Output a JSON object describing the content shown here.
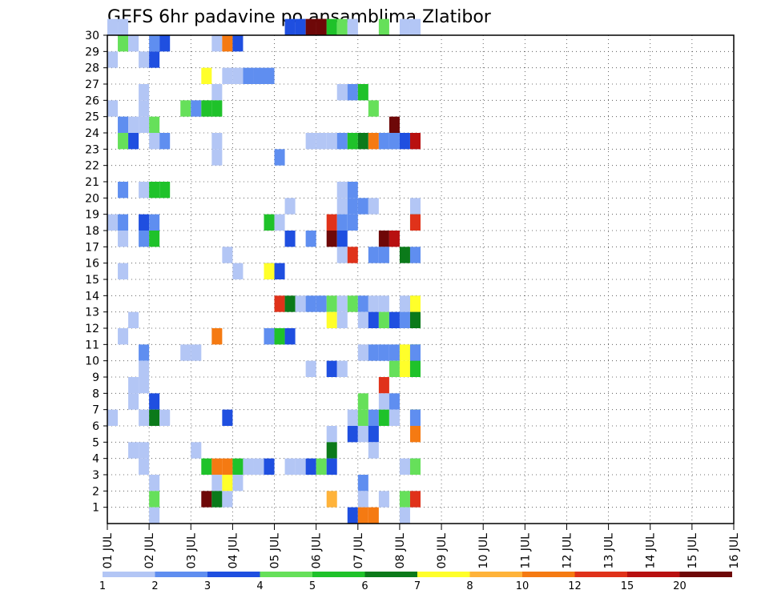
{
  "chart_data": {
    "type": "heatmap",
    "title": "GEFS 6hr padavine po ansamblima Zlatibor",
    "xlabel": "",
    "ylabel": "",
    "x_ticks": [
      "01 JUL",
      "02 JUL",
      "03 JUL",
      "04 JUL",
      "05 JUL",
      "06 JUL",
      "07 JUL",
      "08 JUL",
      "09 JUL",
      "10 JUL",
      "11 JUL",
      "12 JUL",
      "13 JUL",
      "14 JUL",
      "15 JUL",
      "16 JUL"
    ],
    "y_ticks": [
      1,
      2,
      3,
      4,
      5,
      6,
      7,
      8,
      9,
      10,
      11,
      12,
      13,
      14,
      15,
      16,
      17,
      18,
      19,
      20,
      21,
      22,
      23,
      24,
      25,
      26,
      27,
      28,
      29,
      30
    ],
    "x_range": [
      0,
      60
    ],
    "y_range": [
      0,
      30
    ],
    "grid": "dotted",
    "colorbar": {
      "labels": [
        "1",
        "2",
        "3",
        "4",
        "5",
        "6",
        "7",
        "8",
        "10",
        "12",
        "15",
        "20"
      ],
      "colors": [
        "#b3c6f5",
        "#5f8ef0",
        "#1f4fe0",
        "#66e05a",
        "#1fc22a",
        "#0b7a1a",
        "#ffff2a",
        "#ffb33a",
        "#f57a12",
        "#e0321a",
        "#b81010",
        "#6e0808"
      ]
    },
    "cells": [
      [
        0,
        30,
        0
      ],
      [
        1,
        30,
        0
      ],
      [
        17,
        30,
        2
      ],
      [
        18,
        30,
        2
      ],
      [
        19,
        30,
        11
      ],
      [
        20,
        30,
        11
      ],
      [
        20,
        30,
        11
      ],
      [
        21,
        30,
        4
      ],
      [
        22,
        30,
        3
      ],
      [
        23,
        30,
        0
      ],
      [
        23,
        30,
        0
      ],
      [
        26,
        30,
        3
      ],
      [
        28,
        30,
        0
      ],
      [
        29,
        30,
        0
      ],
      [
        1,
        29,
        3
      ],
      [
        2,
        29,
        0
      ],
      [
        4,
        29,
        1
      ],
      [
        5,
        29,
        2
      ],
      [
        10,
        29,
        0
      ],
      [
        11,
        29,
        8
      ],
      [
        12,
        29,
        2
      ],
      [
        0,
        28,
        0
      ],
      [
        3,
        28,
        0
      ],
      [
        4,
        28,
        2
      ],
      [
        9,
        27,
        6
      ],
      [
        11,
        27,
        0
      ],
      [
        12,
        27,
        0
      ],
      [
        13,
        27,
        1
      ],
      [
        14,
        27,
        1
      ],
      [
        15,
        27,
        1
      ],
      [
        3,
        26,
        0
      ],
      [
        10,
        26,
        0
      ],
      [
        22,
        26,
        0
      ],
      [
        23,
        26,
        1
      ],
      [
        24,
        26,
        4
      ],
      [
        0,
        25,
        0
      ],
      [
        3,
        25,
        0
      ],
      [
        7,
        25,
        3
      ],
      [
        8,
        25,
        1
      ],
      [
        9,
        25,
        4
      ],
      [
        10,
        25,
        4
      ],
      [
        25,
        25,
        3
      ],
      [
        1,
        24,
        1
      ],
      [
        2,
        24,
        0
      ],
      [
        3,
        24,
        0
      ],
      [
        4,
        24,
        3
      ],
      [
        27,
        24,
        11
      ],
      [
        1,
        23,
        3
      ],
      [
        2,
        23,
        2
      ],
      [
        4,
        23,
        0
      ],
      [
        5,
        23,
        1
      ],
      [
        10,
        23,
        0
      ],
      [
        19,
        23,
        0
      ],
      [
        20,
        23,
        0
      ],
      [
        21,
        23,
        0
      ],
      [
        22,
        23,
        1
      ],
      [
        23,
        23,
        4
      ],
      [
        24,
        23,
        5
      ],
      [
        25,
        23,
        8
      ],
      [
        26,
        23,
        1
      ],
      [
        27,
        23,
        1
      ],
      [
        28,
        23,
        2
      ],
      [
        29,
        23,
        0
      ],
      [
        29,
        23,
        10
      ],
      [
        10,
        22,
        0
      ],
      [
        16,
        22,
        1
      ],
      [
        1,
        20,
        1
      ],
      [
        3,
        20,
        0
      ],
      [
        4,
        20,
        4
      ],
      [
        5,
        20,
        4
      ],
      [
        22,
        20,
        0
      ],
      [
        23,
        20,
        1
      ],
      [
        17,
        19,
        0
      ],
      [
        22,
        19,
        0
      ],
      [
        23,
        19,
        1
      ],
      [
        24,
        19,
        1
      ],
      [
        25,
        19,
        0
      ],
      [
        29,
        19,
        0
      ],
      [
        0,
        18,
        0
      ],
      [
        1,
        18,
        1
      ],
      [
        3,
        18,
        2
      ],
      [
        4,
        18,
        1
      ],
      [
        15,
        18,
        4
      ],
      [
        16,
        18,
        0
      ],
      [
        21,
        18,
        9
      ],
      [
        22,
        18,
        1
      ],
      [
        23,
        18,
        1
      ],
      [
        29,
        18,
        5
      ],
      [
        29,
        18,
        9
      ],
      [
        1,
        17,
        0
      ],
      [
        3,
        17,
        1
      ],
      [
        4,
        17,
        4
      ],
      [
        17,
        17,
        2
      ],
      [
        19,
        17,
        1
      ],
      [
        21,
        17,
        11
      ],
      [
        22,
        17,
        2
      ],
      [
        26,
        17,
        11
      ],
      [
        27,
        17,
        10
      ],
      [
        11,
        16,
        0
      ],
      [
        22,
        16,
        0
      ],
      [
        23,
        16,
        9
      ],
      [
        25,
        16,
        1
      ],
      [
        26,
        16,
        1
      ],
      [
        28,
        16,
        5
      ],
      [
        29,
        16,
        1
      ],
      [
        1,
        15,
        0
      ],
      [
        12,
        15,
        0
      ],
      [
        15,
        15,
        2
      ],
      [
        15,
        15,
        6
      ],
      [
        16,
        15,
        2
      ],
      [
        16,
        13,
        9
      ],
      [
        17,
        13,
        5
      ],
      [
        18,
        13,
        0
      ],
      [
        19,
        13,
        1
      ],
      [
        20,
        13,
        1
      ],
      [
        21,
        13,
        3
      ],
      [
        22,
        13,
        0
      ],
      [
        23,
        13,
        3
      ],
      [
        24,
        13,
        1
      ],
      [
        25,
        13,
        0
      ],
      [
        26,
        13,
        0
      ],
      [
        28,
        13,
        0
      ],
      [
        29,
        13,
        1
      ],
      [
        29,
        13,
        6
      ],
      [
        2,
        12,
        0
      ],
      [
        21,
        12,
        6
      ],
      [
        22,
        12,
        0
      ],
      [
        24,
        12,
        0
      ],
      [
        25,
        12,
        2
      ],
      [
        26,
        12,
        3
      ],
      [
        27,
        12,
        2
      ],
      [
        28,
        12,
        1
      ],
      [
        29,
        12,
        7
      ],
      [
        29,
        12,
        5
      ],
      [
        1,
        11,
        0
      ],
      [
        10,
        11,
        8
      ],
      [
        15,
        11,
        1
      ],
      [
        16,
        11,
        4
      ],
      [
        17,
        11,
        2
      ],
      [
        3,
        10,
        1
      ],
      [
        7,
        10,
        0
      ],
      [
        8,
        10,
        0
      ],
      [
        24,
        10,
        0
      ],
      [
        25,
        10,
        1
      ],
      [
        26,
        10,
        1
      ],
      [
        27,
        10,
        1
      ],
      [
        28,
        10,
        6
      ],
      [
        29,
        10,
        4
      ],
      [
        29,
        10,
        1
      ],
      [
        3,
        9,
        0
      ],
      [
        19,
        9,
        0
      ],
      [
        21,
        9,
        2
      ],
      [
        22,
        9,
        0
      ],
      [
        27,
        9,
        3
      ],
      [
        28,
        9,
        6
      ],
      [
        29,
        9,
        2
      ],
      [
        29,
        9,
        4
      ],
      [
        2,
        8,
        0
      ],
      [
        3,
        8,
        0
      ],
      [
        26,
        8,
        9
      ],
      [
        2,
        7,
        0
      ],
      [
        4,
        7,
        2
      ],
      [
        24,
        7,
        3
      ],
      [
        26,
        7,
        0
      ],
      [
        27,
        7,
        1
      ],
      [
        0,
        6,
        0
      ],
      [
        3,
        6,
        0
      ],
      [
        4,
        6,
        5
      ],
      [
        5,
        6,
        0
      ],
      [
        11,
        6,
        2
      ],
      [
        23,
        6,
        0
      ],
      [
        24,
        6,
        3
      ],
      [
        25,
        6,
        1
      ],
      [
        26,
        6,
        4
      ],
      [
        27,
        6,
        0
      ],
      [
        29,
        6,
        5
      ],
      [
        29,
        6,
        1
      ],
      [
        21,
        5,
        0
      ],
      [
        23,
        5,
        2
      ],
      [
        24,
        5,
        0
      ],
      [
        25,
        5,
        2
      ],
      [
        29,
        5,
        8
      ],
      [
        2,
        4,
        0
      ],
      [
        3,
        4,
        0
      ],
      [
        8,
        4,
        0
      ],
      [
        21,
        4,
        5
      ],
      [
        25,
        4,
        0
      ],
      [
        3,
        3,
        0
      ],
      [
        9,
        3,
        4
      ],
      [
        10,
        3,
        8
      ],
      [
        11,
        3,
        8
      ],
      [
        12,
        3,
        4
      ],
      [
        13,
        3,
        0
      ],
      [
        14,
        3,
        0
      ],
      [
        15,
        3,
        2
      ],
      [
        17,
        3,
        0
      ],
      [
        18,
        3,
        0
      ],
      [
        19,
        3,
        2
      ],
      [
        20,
        3,
        3
      ],
      [
        21,
        3,
        2
      ],
      [
        28,
        3,
        0
      ],
      [
        29,
        3,
        1
      ],
      [
        29,
        3,
        3
      ],
      [
        4,
        2,
        0
      ],
      [
        10,
        2,
        0
      ],
      [
        11,
        2,
        6
      ],
      [
        12,
        2,
        0
      ],
      [
        24,
        2,
        1
      ],
      [
        4,
        1,
        3
      ],
      [
        9,
        1,
        11
      ],
      [
        10,
        1,
        5
      ],
      [
        11,
        1,
        0
      ],
      [
        21,
        1,
        7
      ],
      [
        24,
        1,
        0
      ],
      [
        26,
        1,
        0
      ],
      [
        28,
        1,
        3
      ],
      [
        29,
        1,
        0
      ],
      [
        29,
        1,
        9
      ],
      [
        4,
        0,
        0
      ],
      [
        23,
        0,
        2
      ],
      [
        24,
        0,
        8
      ],
      [
        25,
        0,
        8
      ],
      [
        28,
        0,
        0
      ]
    ]
  }
}
